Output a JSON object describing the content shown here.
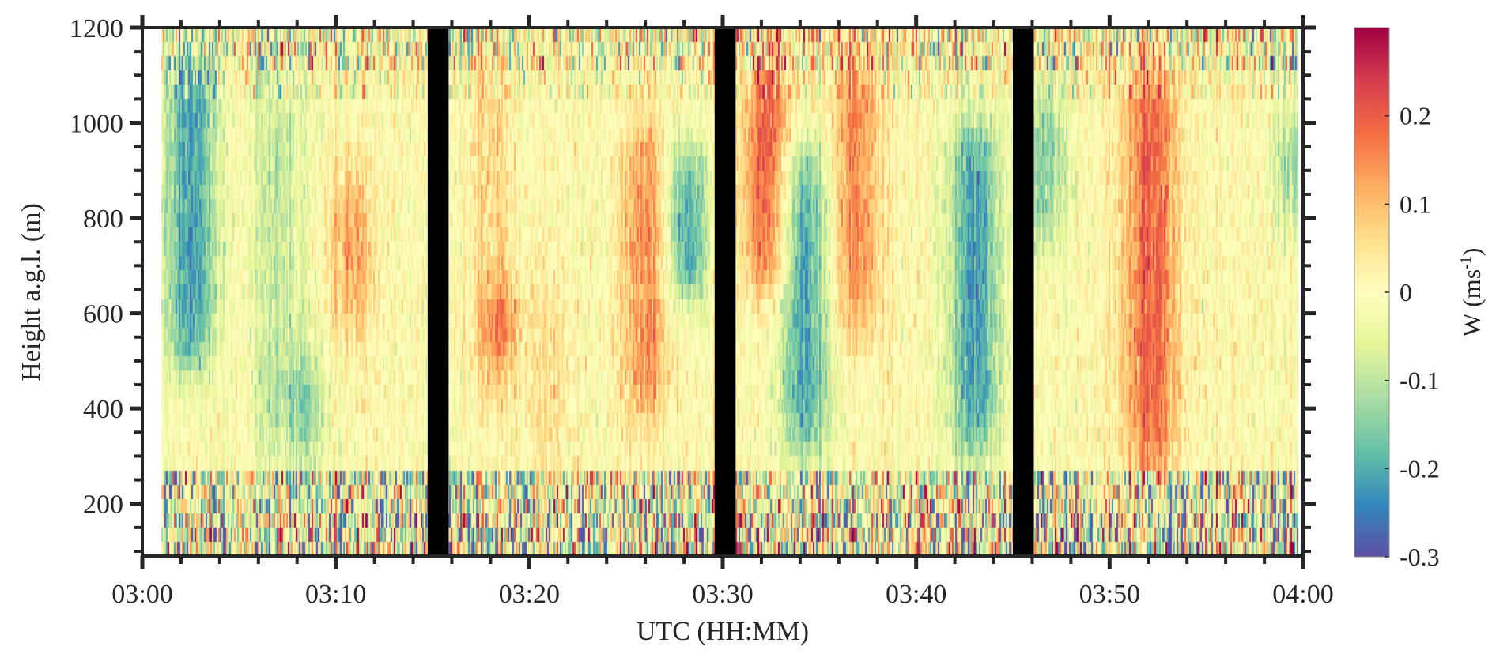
{
  "chart_data": {
    "type": "heatmap",
    "title": "",
    "xlabel": "UTC (HH:MM)",
    "ylabel": "Height a.g.l. (m)",
    "colorbar_label": "W (ms",
    "colorbar_label_exponent": "-1",
    "colorbar_label_close": ")",
    "colormap": "Spectral (reversed)",
    "colormap_colors": [
      "#5e4fa2",
      "#3288bd",
      "#66c2a5",
      "#abdda4",
      "#e6f598",
      "#ffffbf",
      "#fee08b",
      "#fdae61",
      "#f46d43",
      "#d53e4f",
      "#9e0142"
    ],
    "xlim": [
      "03:00",
      "04:00"
    ],
    "ylim": [
      90,
      1200
    ],
    "clim": [
      -0.3,
      0.3
    ],
    "x_ticks": [
      "03:00",
      "03:10",
      "03:20",
      "03:30",
      "03:40",
      "03:50",
      "04:00"
    ],
    "y_ticks": [
      200,
      400,
      600,
      800,
      1000,
      1200
    ],
    "y_tick_labels": [
      "200",
      "400",
      "600",
      "800",
      "1000",
      "1200"
    ],
    "colorbar_ticks": [
      -0.3,
      -0.2,
      -0.1,
      0,
      0.1,
      0.2
    ],
    "colorbar_tick_labels": [
      "-0.3",
      "-0.2",
      "-0.1",
      "0",
      "0.1",
      "0.2"
    ],
    "data_start": "03:01",
    "data_end": "03:59:45",
    "no_data_gaps": [
      [
        "03:14:45",
        "03:15:50"
      ],
      [
        "03:29:35",
        "03:30:40"
      ],
      [
        "03:45:00",
        "03:46:05"
      ]
    ],
    "gap_color": "#000000",
    "structures": [
      {
        "time": "03:02:30",
        "height_range": [
          480,
          1150
        ],
        "w": -0.22
      },
      {
        "time": "03:07:00",
        "height_range": [
          300,
          1100
        ],
        "w": -0.09
      },
      {
        "time": "03:08:30",
        "height_range": [
          300,
          500
        ],
        "w": -0.14
      },
      {
        "time": "03:10:45",
        "height_range": [
          550,
          900
        ],
        "w": 0.13
      },
      {
        "time": "03:18:00",
        "height_range": [
          400,
          1150
        ],
        "w": 0.06
      },
      {
        "time": "03:18:30",
        "height_range": [
          520,
          620
        ],
        "w": 0.2
      },
      {
        "time": "03:21:00",
        "height_range": [
          250,
          700
        ],
        "w": 0.05
      },
      {
        "time": "03:26:00",
        "height_range": [
          380,
          1000
        ],
        "w": 0.15
      },
      {
        "time": "03:28:10",
        "height_range": [
          620,
          950
        ],
        "w": -0.22
      },
      {
        "time": "03:32:15",
        "height_range": [
          650,
          1150
        ],
        "w": 0.2
      },
      {
        "time": "03:34:15",
        "height_range": [
          300,
          950
        ],
        "w": -0.22
      },
      {
        "time": "03:36:50",
        "height_range": [
          550,
          1150
        ],
        "w": 0.15
      },
      {
        "time": "03:43:00",
        "height_range": [
          300,
          1000
        ],
        "w": -0.22
      },
      {
        "time": "03:46:40",
        "height_range": [
          750,
          1050
        ],
        "w": -0.15
      },
      {
        "time": "03:52:10",
        "height_range": [
          250,
          1150
        ],
        "w": 0.2
      },
      {
        "time": "03:59:30",
        "height_range": [
          800,
          1000
        ],
        "w": -0.15
      }
    ],
    "noisy_layers_m": [
      [
        90,
        280
      ],
      [
        1100,
        1200
      ]
    ],
    "grid": false,
    "legend": "colorbar-right"
  }
}
